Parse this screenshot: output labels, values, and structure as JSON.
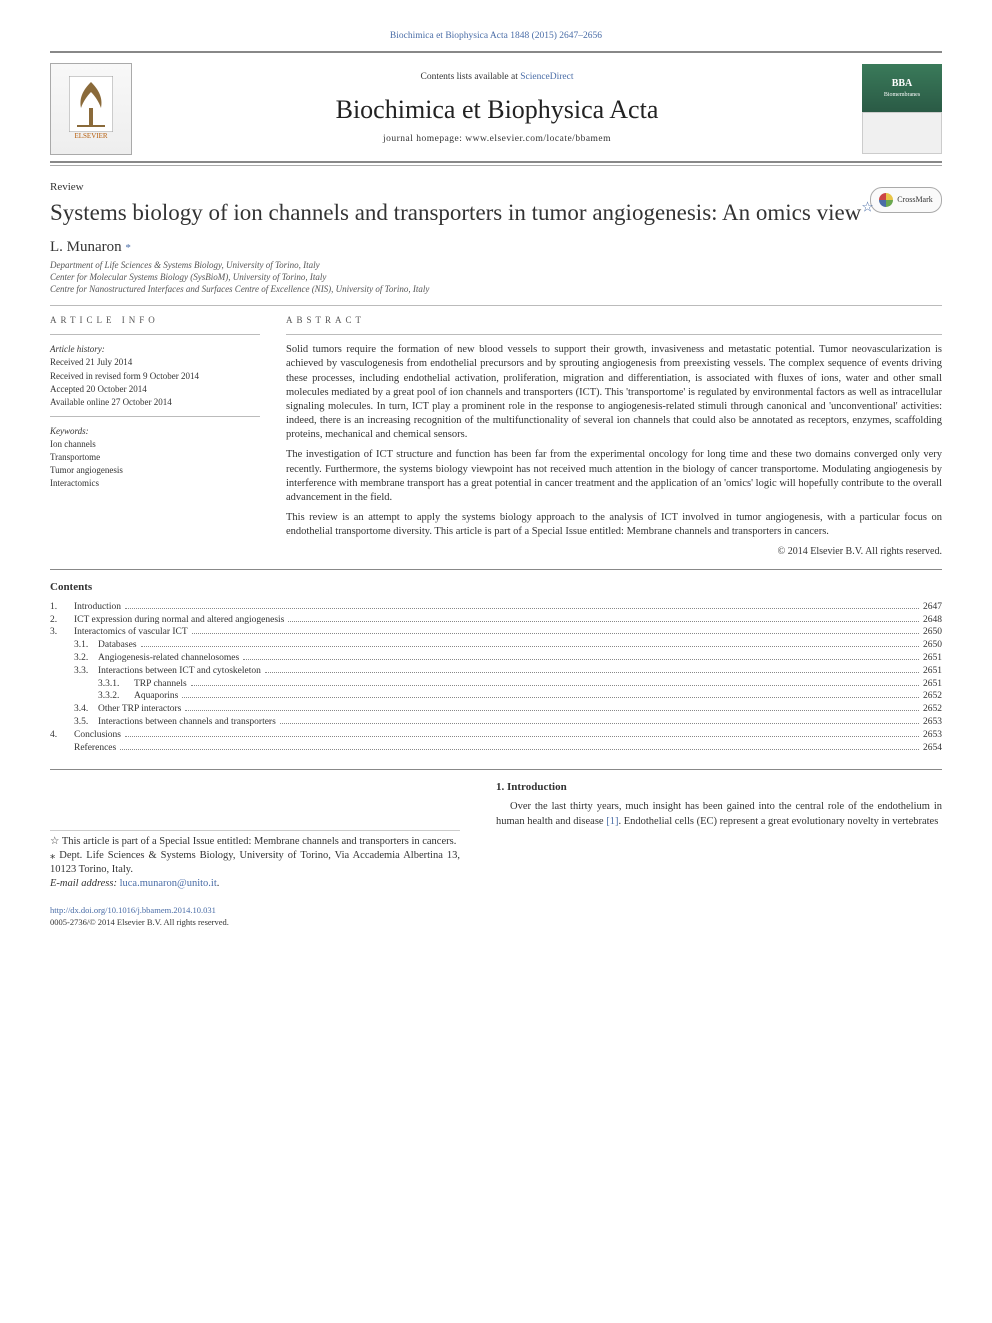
{
  "header": {
    "citation": "Biochimica et Biophysica Acta 1848 (2015) 2647–2656",
    "contents_at": "Contents lists available at",
    "contents_link": "ScienceDirect",
    "journal_title": "Biochimica et Biophysica Acta",
    "homepage_label": "journal homepage:",
    "homepage_url": "www.elsevier.com/locate/bbamem",
    "publisher": "ELSEVIER",
    "cover_label": "BBA",
    "cover_sub": "Biomembranes"
  },
  "article": {
    "type": "Review",
    "title": "Systems biology of ion channels and transporters in tumor angiogenesis: An omics view",
    "crossmark": "CrossMark",
    "author": "L. Munaron",
    "corr_mark": "*",
    "affiliations": [
      "Department of Life Sciences & Systems Biology, University of Torino, Italy",
      "Center for Molecular Systems Biology (SysBioM), University of Torino, Italy",
      "Centre for Nanostructured Interfaces and Surfaces Centre of Excellence (NIS), University of Torino, Italy"
    ]
  },
  "info": {
    "heading": "article info",
    "history_label": "Article history:",
    "received": "Received 21 July 2014",
    "revised": "Received in revised form 9 October 2014",
    "accepted": "Accepted 20 October 2014",
    "online": "Available online 27 October 2014",
    "keywords_label": "Keywords:",
    "keywords": [
      "Ion channels",
      "Transportome",
      "Tumor angiogenesis",
      "Interactomics"
    ]
  },
  "abstract": {
    "heading": "abstract",
    "p1": "Solid tumors require the formation of new blood vessels to support their growth, invasiveness and metastatic potential. Tumor neovascularization is achieved by vasculogenesis from endothelial precursors and by sprouting angiogenesis from preexisting vessels. The complex sequence of events driving these processes, including endothelial activation, proliferation, migration and differentiation, is associated with fluxes of ions, water and other small molecules mediated by a great pool of ion channels and transporters (ICT). This 'transportome' is regulated by environmental factors as well as intracellular signaling molecules. In turn, ICT play a prominent role in the response to angiogenesis-related stimuli through canonical and 'unconventional' activities: indeed, there is an increasing recognition of the multifunctionality of several ion channels that could also be annotated as receptors, enzymes, scaffolding proteins, mechanical and chemical sensors.",
    "p2": "The investigation of ICT structure and function has been far from the experimental oncology for long time and these two domains converged only very recently. Furthermore, the systems biology viewpoint has not received much attention in the biology of cancer transportome. Modulating angiogenesis by interference with membrane transport has a great potential in cancer treatment and the application of an 'omics' logic will hopefully contribute to the overall advancement in the field.",
    "p3": "This review is an attempt to apply the systems biology approach to the analysis of ICT involved in tumor angiogenesis, with a particular focus on endothelial transportome diversity. This article is part of a Special Issue entitled: Membrane channels and transporters in cancers.",
    "copyright": "© 2014 Elsevier B.V. All rights reserved."
  },
  "contents": {
    "heading": "Contents",
    "items": [
      {
        "num": "1.",
        "label": "Introduction",
        "page": "2647",
        "indent": 0
      },
      {
        "num": "2.",
        "label": "ICT expression during normal and altered angiogenesis",
        "page": "2648",
        "indent": 0
      },
      {
        "num": "3.",
        "label": "Interactomics of vascular ICT",
        "page": "2650",
        "indent": 0
      },
      {
        "num": "3.1.",
        "label": "Databases",
        "page": "2650",
        "indent": 1
      },
      {
        "num": "3.2.",
        "label": "Angiogenesis-related channelosomes",
        "page": "2651",
        "indent": 1
      },
      {
        "num": "3.3.",
        "label": "Interactions between ICT and cytoskeleton",
        "page": "2651",
        "indent": 1
      },
      {
        "num": "3.3.1.",
        "label": "TRP channels",
        "page": "2651",
        "indent": 2
      },
      {
        "num": "3.3.2.",
        "label": "Aquaporins",
        "page": "2652",
        "indent": 2
      },
      {
        "num": "3.4.",
        "label": "Other TRP interactors",
        "page": "2652",
        "indent": 1
      },
      {
        "num": "3.5.",
        "label": "Interactions between channels and transporters",
        "page": "2653",
        "indent": 1
      },
      {
        "num": "4.",
        "label": "Conclusions",
        "page": "2653",
        "indent": 0
      },
      {
        "num": "",
        "label": "References",
        "page": "2654",
        "indent": 0
      }
    ]
  },
  "footnotes": {
    "star": "☆ This article is part of a Special Issue entitled: Membrane channels and transporters in cancers.",
    "corr": "⁎ Dept. Life Sciences & Systems Biology, University of Torino, Via Accademia Albertina 13, 10123 Torino, Italy.",
    "email_label": "E-mail address:",
    "email": "luca.munaron@unito.it"
  },
  "doi": {
    "url": "http://dx.doi.org/10.1016/j.bbamem.2014.10.031",
    "issn": "0005-2736/© 2014 Elsevier B.V. All rights reserved."
  },
  "intro": {
    "heading": "1. Introduction",
    "p1a": "Over the last thirty years, much insight has been gained into the central role of the endothelium in human health and disease ",
    "p1ref": "[1]",
    "p1b": ". Endothelial cells (EC) represent a great evolutionary novelty in vertebrates"
  },
  "colors": {
    "link": "#4a6da7",
    "text": "#333333",
    "rule": "#888888"
  }
}
